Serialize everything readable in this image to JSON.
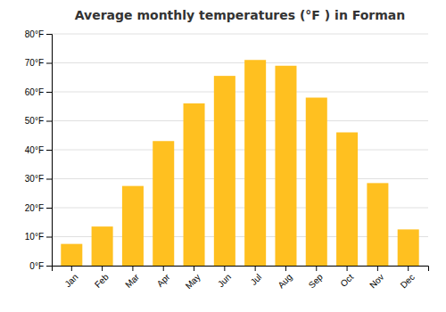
{
  "chart_data": {
    "type": "bar",
    "title": "Average monthly temperatures (°F ) in Forman",
    "categories": [
      "Jan",
      "Feb",
      "Mar",
      "Apr",
      "May",
      "Jun",
      "Jul",
      "Aug",
      "Sep",
      "Oct",
      "Nov",
      "Dec"
    ],
    "values": [
      7.5,
      13.5,
      27.5,
      43,
      56,
      65.5,
      71,
      69,
      58,
      46,
      28.5,
      12.5
    ],
    "color": "#FFC020",
    "ylim": [
      0,
      80
    ],
    "yticks": [
      {
        "value": 0,
        "label": "0°F"
      },
      {
        "value": 10,
        "label": "10°F"
      },
      {
        "value": 20,
        "label": "20°F"
      },
      {
        "value": 30,
        "label": "30°F"
      },
      {
        "value": 40,
        "label": "40°F"
      },
      {
        "value": 50,
        "label": "50°F"
      },
      {
        "value": 60,
        "label": "60°F"
      },
      {
        "value": 70,
        "label": "70°F"
      },
      {
        "value": 80,
        "label": "80°F"
      }
    ],
    "grid": true
  }
}
